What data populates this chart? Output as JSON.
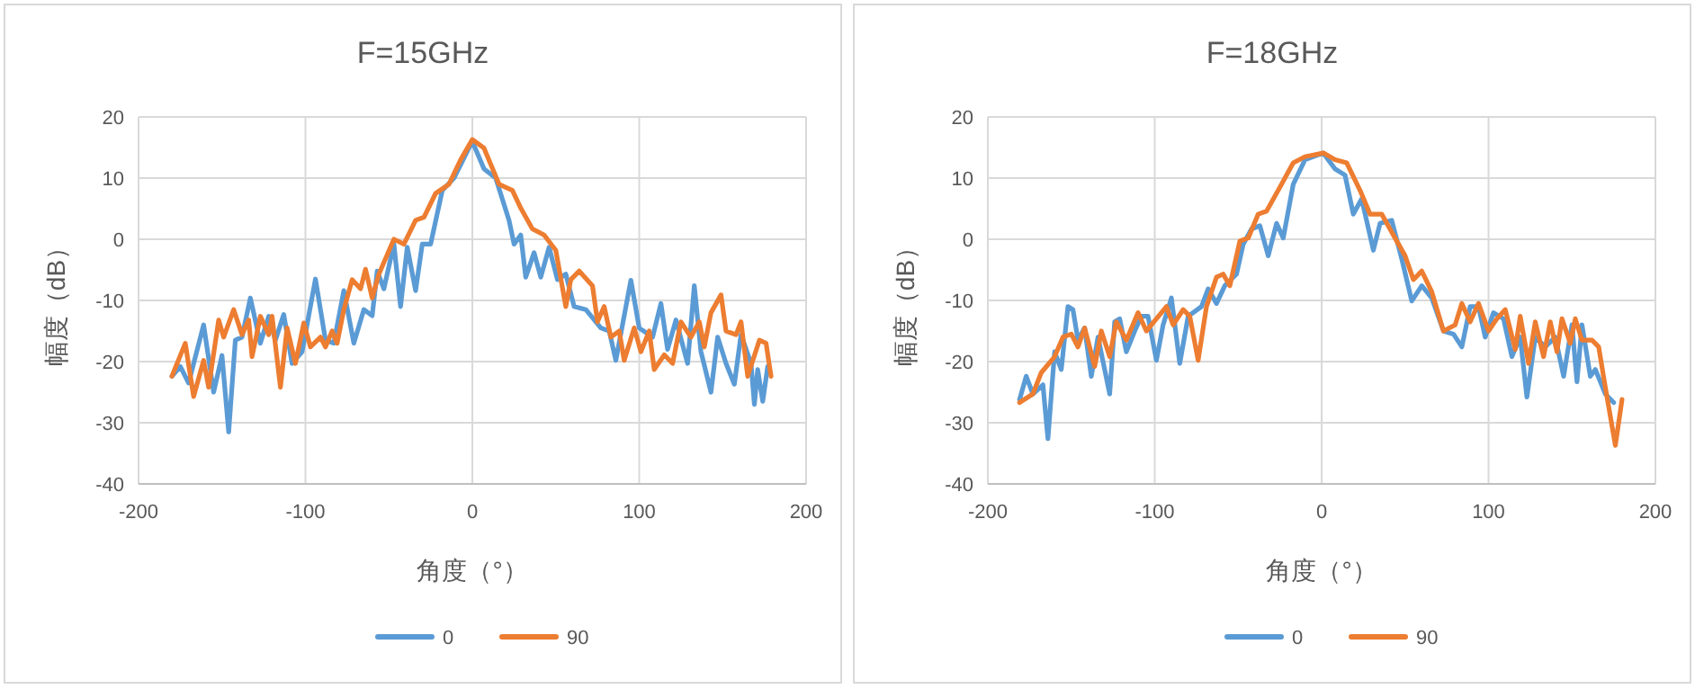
{
  "chart_data": [
    {
      "type": "line",
      "title": "F=15GHz",
      "xlabel": "角度（°）",
      "ylabel": "幅度（dB）",
      "xlim": [
        -200,
        200
      ],
      "ylim": [
        -40,
        20
      ],
      "xticks": [
        -200,
        -100,
        0,
        100,
        200
      ],
      "yticks": [
        -40,
        -30,
        -20,
        -10,
        0,
        10,
        20
      ],
      "grid": true,
      "legend": "bottom",
      "series": [
        {
          "name": "0",
          "color": "#5b9bd5",
          "x": [
            -180,
            -175,
            -170,
            -161,
            -155,
            -150,
            -146,
            -142,
            -138,
            -133,
            -127,
            -122,
            -118,
            -113,
            -108,
            -102,
            -94,
            -88,
            -83,
            -77,
            -71,
            -65,
            -60,
            -57,
            -53,
            -47,
            -43,
            -39,
            -34,
            -30,
            -25,
            -18,
            -11,
            0,
            7,
            14,
            22,
            25,
            29,
            32,
            37,
            41,
            46,
            51,
            56,
            61,
            68,
            77,
            82,
            86,
            95,
            100,
            108,
            113,
            117,
            122,
            129,
            133,
            137,
            143,
            147,
            152,
            157,
            161,
            167,
            169,
            171,
            174,
            177
          ],
          "values": [
            -22.4,
            -20.8,
            -23.5,
            -14,
            -25,
            -19,
            -31.5,
            -16.5,
            -16,
            -9.6,
            -17,
            -12.6,
            -16.5,
            -12.3,
            -20.3,
            -18.4,
            -6.5,
            -16.5,
            -17,
            -8.4,
            -17,
            -11.5,
            -12.5,
            -5.2,
            -8.1,
            -0.8,
            -11,
            -1.3,
            -8.4,
            -0.8,
            -0.8,
            8,
            10,
            16,
            11.5,
            10,
            3.1,
            -0.8,
            0.7,
            -6.2,
            -2.2,
            -6.2,
            -1.3,
            -6.6,
            -5.7,
            -11,
            -11.5,
            -14.5,
            -15,
            -19.8,
            -6.7,
            -14.5,
            -16,
            -10.5,
            -18,
            -13.2,
            -20.3,
            -7.6,
            -18.4,
            -25,
            -16,
            -20.3,
            -23.7,
            -15.6,
            -20.3,
            -27,
            -21.3,
            -26.5,
            -20.8
          ]
        },
        {
          "name": "90",
          "color": "#ed7d31",
          "x": [
            -180,
            -172,
            -167,
            -161,
            -158,
            -152,
            -149,
            -143,
            -138,
            -134,
            -132,
            -127,
            -122,
            -120,
            -115,
            -111,
            -106,
            -101,
            -97,
            -91,
            -88,
            -84,
            -81,
            -77,
            -72,
            -67,
            -64,
            -60,
            -56,
            -47,
            -41,
            -34,
            -29,
            -22,
            -14,
            -7,
            0,
            7,
            16,
            24,
            29,
            36,
            43,
            50,
            56,
            59,
            64,
            72,
            75,
            79,
            83,
            88,
            91,
            97,
            101,
            106,
            109,
            115,
            120,
            125,
            131,
            136,
            139,
            143,
            149,
            152,
            158,
            161,
            165,
            172,
            176,
            179
          ],
          "values": [
            -22.4,
            -17,
            -25.7,
            -19.8,
            -24.2,
            -13.2,
            -16,
            -11.5,
            -15.6,
            -13.2,
            -19.2,
            -12.6,
            -15.6,
            -12.6,
            -24.2,
            -14.5,
            -20.3,
            -13.7,
            -17.6,
            -16,
            -17.6,
            -15,
            -17,
            -11.5,
            -6.6,
            -8.1,
            -4.9,
            -9.6,
            -5.7,
            0,
            -0.8,
            3.1,
            3.6,
            7.5,
            9,
            13,
            16.3,
            14.9,
            9,
            8,
            5.1,
            1.7,
            0.7,
            -1.8,
            -11,
            -6.6,
            -5.2,
            -7.6,
            -13.5,
            -11,
            -16,
            -15,
            -19.8,
            -14.5,
            -18.4,
            -15,
            -21.3,
            -18.9,
            -20.3,
            -13.5,
            -16,
            -13.5,
            -17.6,
            -12,
            -9.1,
            -15,
            -15.6,
            -13.5,
            -22.4,
            -16.5,
            -17,
            -22.4
          ]
        }
      ]
    },
    {
      "type": "line",
      "title": "F=18GHz",
      "xlabel": "角度（°）",
      "ylabel": "幅度（dB）",
      "xlim": [
        -200,
        200
      ],
      "ylim": [
        -40,
        20
      ],
      "xticks": [
        -200,
        -100,
        0,
        100,
        200
      ],
      "yticks": [
        -40,
        -30,
        -20,
        -10,
        0,
        10,
        20
      ],
      "grid": true,
      "legend": "bottom",
      "series": [
        {
          "name": "0",
          "color": "#5b9bd5",
          "x": [
            -181,
            -177,
            -173,
            -167,
            -164,
            -160,
            -156,
            -152,
            -149,
            -146,
            -142,
            -138,
            -134,
            -127,
            -124,
            -121,
            -117,
            -112,
            -108,
            -104,
            -99,
            -95,
            -90,
            -85,
            -80,
            -72,
            -68,
            -63,
            -58,
            -51,
            -47,
            -42,
            -37,
            -32,
            -27,
            -23,
            -17,
            -10,
            1,
            8,
            14,
            19,
            24,
            31,
            35,
            42,
            48,
            54,
            60,
            66,
            73,
            79,
            84,
            89,
            94,
            98,
            103,
            109,
            114,
            119,
            123,
            128,
            134,
            140,
            145,
            150,
            153,
            156,
            161,
            164,
            170,
            175
          ],
          "values": [
            -26.2,
            -22.4,
            -25.3,
            -23.8,
            -32.6,
            -18.4,
            -21.3,
            -11,
            -11.5,
            -16.5,
            -14.5,
            -22.4,
            -16,
            -25.3,
            -13.5,
            -13,
            -18.4,
            -15,
            -12.6,
            -12.6,
            -19.8,
            -14,
            -9.6,
            -20.3,
            -12.6,
            -11,
            -8.1,
            -10.5,
            -7.6,
            -5.7,
            -0.8,
            1.7,
            2.2,
            -2.7,
            2.6,
            0.2,
            9,
            13,
            14.1,
            11.5,
            10.5,
            4.1,
            6.6,
            -1.8,
            2.6,
            3.1,
            -3.2,
            -10.1,
            -7.6,
            -9.6,
            -15,
            -15.5,
            -17.6,
            -11,
            -11,
            -16,
            -12,
            -13,
            -19.2,
            -16,
            -25.8,
            -16,
            -17.6,
            -16,
            -22.4,
            -14,
            -23.3,
            -14,
            -22.4,
            -21.3,
            -25.3,
            -26.7
          ]
        },
        {
          "name": "90",
          "color": "#ed7d31",
          "x": [
            -181,
            -173,
            -168,
            -160,
            -155,
            -150,
            -146,
            -142,
            -136,
            -132,
            -127,
            -123,
            -117,
            -110,
            -105,
            -99,
            -93,
            -89,
            -83,
            -79,
            -74,
            -69,
            -63,
            -59,
            -55,
            -49,
            -44,
            -38,
            -33,
            -24,
            -17,
            -10,
            1,
            8,
            15,
            23,
            29,
            36,
            44,
            50,
            55,
            60,
            66,
            73,
            80,
            84,
            89,
            94,
            100,
            105,
            110,
            116,
            119,
            124,
            128,
            133,
            137,
            141,
            144,
            149,
            152,
            156,
            162,
            166,
            170,
            176,
            180
          ],
          "values": [
            -26.7,
            -25.3,
            -21.8,
            -19.2,
            -16,
            -15.5,
            -17.6,
            -14.5,
            -20.8,
            -15,
            -19.2,
            -13.5,
            -16.5,
            -12,
            -15,
            -13,
            -11,
            -14,
            -11.5,
            -12.6,
            -19.8,
            -11,
            -6.2,
            -5.7,
            -7.6,
            -0.3,
            0.2,
            4.1,
            4.6,
            9,
            12.5,
            13.5,
            14.1,
            13,
            12.5,
            8,
            4.1,
            4.1,
            0.2,
            -2.7,
            -6.6,
            -5.2,
            -8.6,
            -15,
            -14,
            -10.5,
            -13.5,
            -10.5,
            -15,
            -13,
            -11.5,
            -18,
            -12.6,
            -20.3,
            -13.5,
            -19.2,
            -13.5,
            -18.4,
            -13,
            -17,
            -13,
            -16.5,
            -16.5,
            -17.6,
            -24.2,
            -33.7,
            -26.2
          ]
        }
      ]
    }
  ]
}
